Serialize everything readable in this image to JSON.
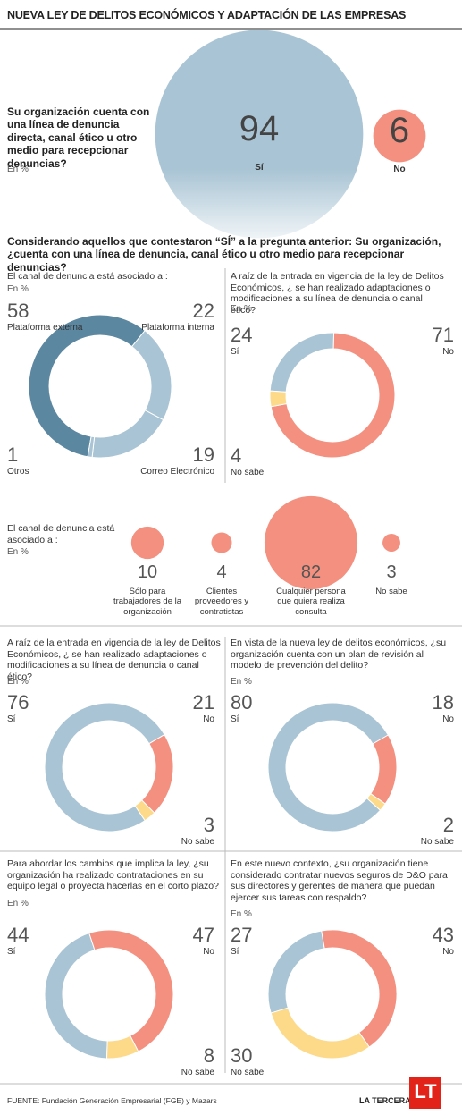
{
  "header": {
    "title": "NUEVA LEY DE DELITOS ECONÓMICOS Y ADAPTACIÓN DE LAS EMPRESAS"
  },
  "section_title": "Considerando aquellos que contestaron “SÍ” a la pregunta anterior: Su organización, ¿cuenta con una línea de denuncia, canal ético u otro medio para recepcionar denuncias?",
  "chart_data": [
    {
      "type": "bubble",
      "title": "Su organización cuenta con una línea de denuncia directa, canal ético u otro medio para recepcionar denuncias?",
      "unit": "En %",
      "categories": [
        "Sí",
        "No"
      ],
      "values": [
        94,
        6
      ],
      "colors": [
        "#a9c4d4",
        "#f4907f"
      ]
    },
    {
      "type": "donut",
      "title": "El canal de denuncia está asociado a :",
      "unit": "En %",
      "categories": [
        "Plataforma externa",
        "Plataforma interna",
        "Correo Electrónico",
        "Otros"
      ],
      "values": [
        58,
        22,
        19,
        1
      ],
      "colors": [
        "#5b87a0",
        "#a9c4d4",
        "#a9c4d4",
        "#a9c4d4"
      ]
    },
    {
      "type": "donut",
      "title": "A raíz de la entrada en vigencia de la ley de Delitos Económicos, ¿ se han realizado adaptaciones o modificaciones a su línea de denuncia o canal ético?",
      "unit": "En %",
      "categories": [
        "Sí",
        "No",
        "No sabe"
      ],
      "values": [
        24,
        71,
        4
      ],
      "colors": [
        "#a9c4d4",
        "#f4907f",
        "#fdd98a"
      ]
    },
    {
      "type": "bubble",
      "title": "El canal de denuncia está asociado a :",
      "unit": "En %",
      "categories": [
        "Sólo para trabajadores de la organización",
        "Clientes proveedores y contratistas",
        "Cualquier persona que quiera realiza consulta",
        "No sabe"
      ],
      "values": [
        10,
        4,
        82,
        3
      ],
      "colors": [
        "#f4907f",
        "#f4907f",
        "#f4907f",
        "#f4907f"
      ]
    },
    {
      "type": "donut",
      "title": "A raíz de la entrada en vigencia de la ley de Delitos Económicos, ¿ se han realizado adaptaciones o modificaciones a su línea de denuncia o canal ético?",
      "unit": "En %",
      "categories": [
        "Sí",
        "No",
        "No sabe"
      ],
      "values": [
        76,
        21,
        3
      ],
      "colors": [
        "#a9c4d4",
        "#f4907f",
        "#fdd98a"
      ]
    },
    {
      "type": "donut",
      "title": "En vista de la nueva ley de delitos económicos, ¿su organización cuenta con un plan de revisión al modelo de prevención del delito?",
      "unit": "En %",
      "categories": [
        "Sí",
        "No",
        "No sabe"
      ],
      "values": [
        80,
        18,
        2
      ],
      "colors": [
        "#a9c4d4",
        "#f4907f",
        "#fdd98a"
      ]
    },
    {
      "type": "donut",
      "title": "Para abordar los cambios que implica la ley, ¿su organización ha realizado contrataciones en su equipo legal o proyecta hacerlas en el corto plazo?",
      "unit": "En %",
      "categories": [
        "Sí",
        "No",
        "No sabe"
      ],
      "values": [
        44,
        47,
        8
      ],
      "colors": [
        "#a9c4d4",
        "#f4907f",
        "#fdd98a"
      ]
    },
    {
      "type": "donut",
      "title": "En este nuevo contexto, ¿su organización tiene considerado contratar nuevos seguros de D&O para sus directores y gerentes de manera que puedan ejercer sus tareas con respaldo?",
      "unit": "En %",
      "categories": [
        "Sí",
        "No",
        "No sabe"
      ],
      "values": [
        27,
        43,
        30
      ],
      "colors": [
        "#a9c4d4",
        "#f4907f",
        "#fdd98a"
      ]
    }
  ],
  "footer": {
    "source": "FUENTE: Fundación Generación Empresarial (FGE) y Mazars",
    "brand": "LA TERCERA",
    "logo": "LT"
  }
}
